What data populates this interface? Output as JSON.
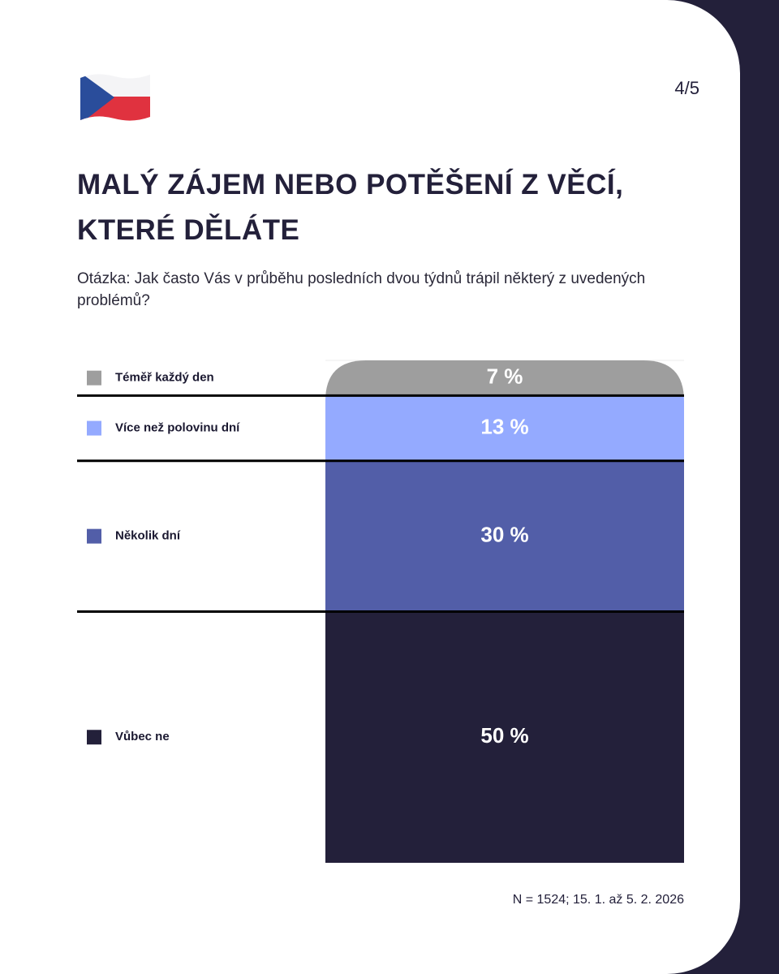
{
  "chart_data": {
    "type": "stacked-bar",
    "page": "4/5",
    "title": "MALÝ ZÁJEM NEBO POTĚŠENÍ Z VĚCÍ, KTERÉ DĚLÁTE",
    "subtitle": "Otázka: Jak často Vás v průběhu posledních dvou týdnů trápil některý z uvedených problémů?",
    "series": [
      {
        "name": "Téměř každý den",
        "color": "#9e9e9e",
        "values": [
          7
        ],
        "value_labels": [
          "7 %"
        ]
      },
      {
        "name": "Více než polovinu dní",
        "color": "#94aaff",
        "values": [
          13
        ],
        "value_labels": [
          "13 %"
        ]
      },
      {
        "name": "Několik dní",
        "color": "#525ea8",
        "values": [
          30
        ],
        "value_labels": [
          "30 %"
        ]
      },
      {
        "name": "Vůbec ne",
        "color": "#23203a",
        "values": [
          50
        ],
        "value_labels": [
          "50 %"
        ]
      }
    ],
    "ylim": [
      0,
      100
    ],
    "note": "N = 1524; 15. 1. až 5. 2. 2026"
  }
}
